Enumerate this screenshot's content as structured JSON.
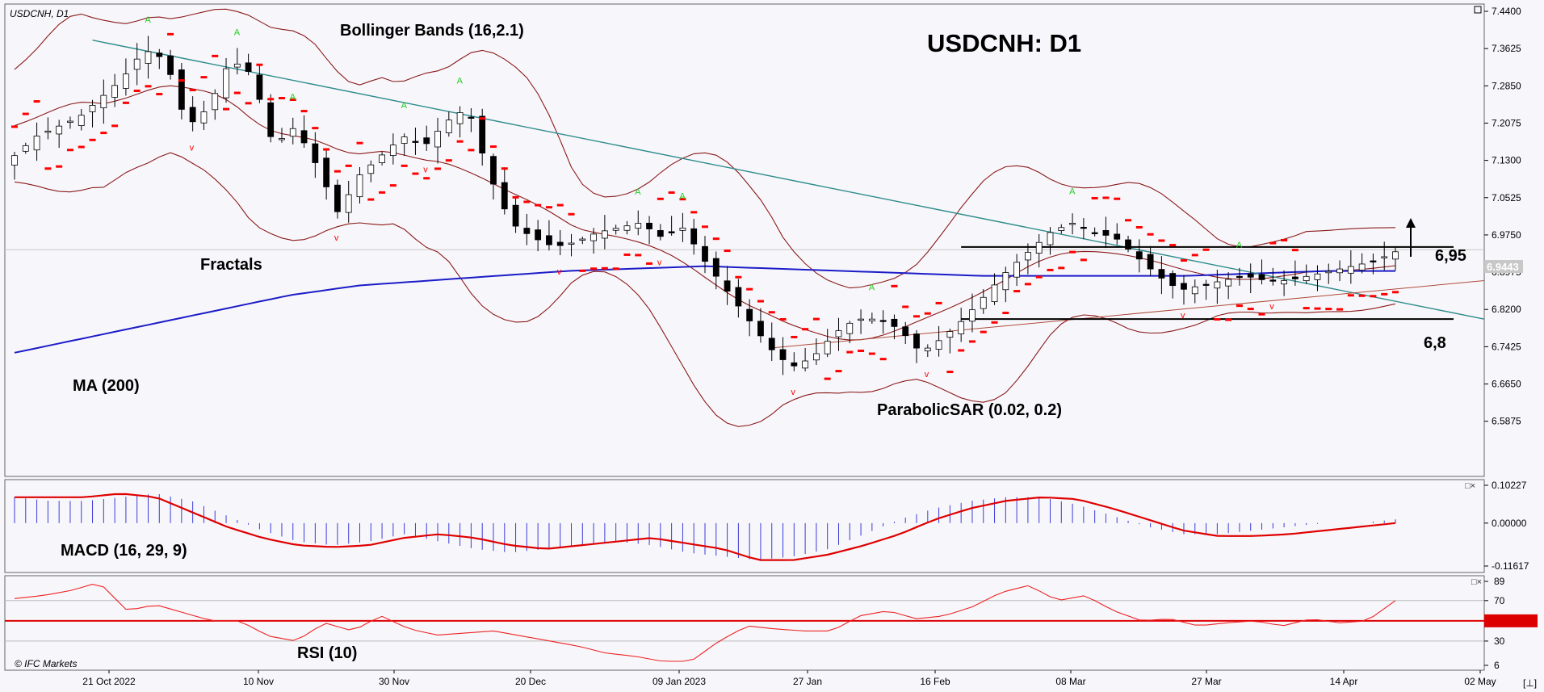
{
  "header": {
    "symbol_tf": "USDCNH, D1",
    "big_title": "USDCNH: D1",
    "copyright": "© IFC Markets"
  },
  "labels": {
    "bollinger": "Bollinger Bands (16,2.1)",
    "fractals": "Fractals",
    "ma": "MA (200)",
    "psar": "ParabolicSAR (0.02, 0.2)",
    "macd": "MACD (16, 29, 9)",
    "rsi": "RSI (10)",
    "level_high": "6,95",
    "level_low": "6,8",
    "current_price": "6.9443",
    "pane_ctrl": "□×"
  },
  "colors": {
    "background": "#f7f7fb",
    "bull_candle": "#ffffff",
    "bear_candle": "#000000",
    "bollinger": "#8b1a1a",
    "ma": "#1c1cc8",
    "trendline": "#2e8b8b",
    "psar": "#ff0000",
    "fractal_up": "#22cc22",
    "fractal_down": "#ff0000",
    "macd_hist": "#3a3ad8",
    "macd_signal": "#e00000",
    "rsi_line": "#ee2222",
    "rsi_mid": "#dd0000"
  },
  "chart_data": {
    "type": "candlestick",
    "main": {
      "yticks": [
        "7.4400",
        "7.3625",
        "7.2850",
        "7.2075",
        "7.1300",
        "7.0525",
        "6.9750",
        "6.8975",
        "6.8200",
        "6.7425",
        "6.6650",
        "6.5875"
      ],
      "ylim": [
        6.54,
        7.44
      ],
      "xticks": [
        "21 Oct 2022",
        "10 Nov",
        "30 Nov",
        "20 Dec",
        "09 Jan 2023",
        "27 Jan",
        "16 Feb",
        "08 Mar",
        "27 Mar",
        "14 Apr",
        "02 May"
      ],
      "levels": [
        6.95,
        6.8
      ],
      "current_price": 6.9443,
      "close_path": [
        7.14,
        7.18,
        7.2,
        7.22,
        7.26,
        7.3,
        7.36,
        7.34,
        7.2,
        7.24,
        7.34,
        7.31,
        7.16,
        7.2,
        7.12,
        7.02,
        7.1,
        7.14,
        7.18,
        7.16,
        7.21,
        7.24,
        7.1,
        7.0,
        6.97,
        6.95,
        6.96,
        6.98,
        6.99,
        7.0,
        6.97,
        6.99,
        6.92,
        6.86,
        6.8,
        6.74,
        6.7,
        6.72,
        6.77,
        6.8,
        6.8,
        6.78,
        6.73,
        6.76,
        6.8,
        6.85,
        6.9,
        6.94,
        6.98,
        7.0,
        6.98,
        6.97,
        6.93,
        6.89,
        6.86,
        6.87,
        6.88,
        6.89,
        6.88,
        6.88,
        6.89,
        6.9,
        6.91,
        6.92,
        6.94
      ],
      "ma200_path": [
        6.73,
        6.76,
        6.79,
        6.82,
        6.85,
        6.87,
        6.88,
        6.89,
        6.9,
        6.905,
        6.91,
        6.905,
        6.9,
        6.895,
        6.89,
        6.89,
        6.89,
        6.89,
        6.895,
        6.9,
        6.9
      ],
      "series_labels": [
        "Bollinger Bands (16,2.1)",
        "Fractals",
        "MA (200)",
        "ParabolicSAR (0.02, 0.2)"
      ]
    },
    "macd": {
      "yticks": [
        "0.10227",
        "0.00000",
        "-0.11617"
      ],
      "ylim": [
        -0.11617,
        0.10227
      ],
      "hist_path": [
        0.07,
        0.06,
        0.06,
        0.07,
        0.08,
        0.06,
        0.02,
        -0.02,
        -0.05,
        -0.06,
        -0.05,
        -0.03,
        -0.05,
        -0.07,
        -0.08,
        -0.07,
        -0.06,
        -0.05,
        -0.06,
        -0.08,
        -0.09,
        -0.1,
        -0.09,
        -0.07,
        -0.03,
        0.01,
        0.04,
        0.06,
        0.07,
        0.07,
        0.05,
        0.02,
        -0.01,
        -0.03,
        -0.03,
        -0.02,
        -0.01,
        0.0,
        0.0,
        0.01
      ],
      "signal_path": [
        0.07,
        0.07,
        0.07,
        0.08,
        0.07,
        0.03,
        -0.01,
        -0.04,
        -0.06,
        -0.065,
        -0.06,
        -0.04,
        -0.03,
        -0.04,
        -0.06,
        -0.07,
        -0.06,
        -0.05,
        -0.04,
        -0.055,
        -0.07,
        -0.1,
        -0.1,
        -0.085,
        -0.06,
        -0.03,
        0.01,
        0.04,
        0.06,
        0.07,
        0.065,
        0.04,
        0.01,
        -0.02,
        -0.035,
        -0.035,
        -0.03,
        -0.02,
        -0.01,
        0.0
      ]
    },
    "rsi": {
      "yticks": [
        "89",
        "70",
        "50",
        "30",
        "6"
      ],
      "ylim": [
        6,
        89
      ],
      "midline": 50,
      "path": [
        72,
        75,
        80,
        88,
        60,
        66,
        58,
        50,
        50,
        35,
        30,
        48,
        40,
        55,
        42,
        36,
        38,
        40,
        35,
        30,
        25,
        18,
        15,
        10,
        10,
        30,
        45,
        42,
        40,
        40,
        55,
        60,
        52,
        55,
        64,
        78,
        85,
        70,
        75,
        60,
        50,
        52,
        45,
        48,
        50,
        45,
        52,
        48,
        50,
        70
      ]
    }
  }
}
